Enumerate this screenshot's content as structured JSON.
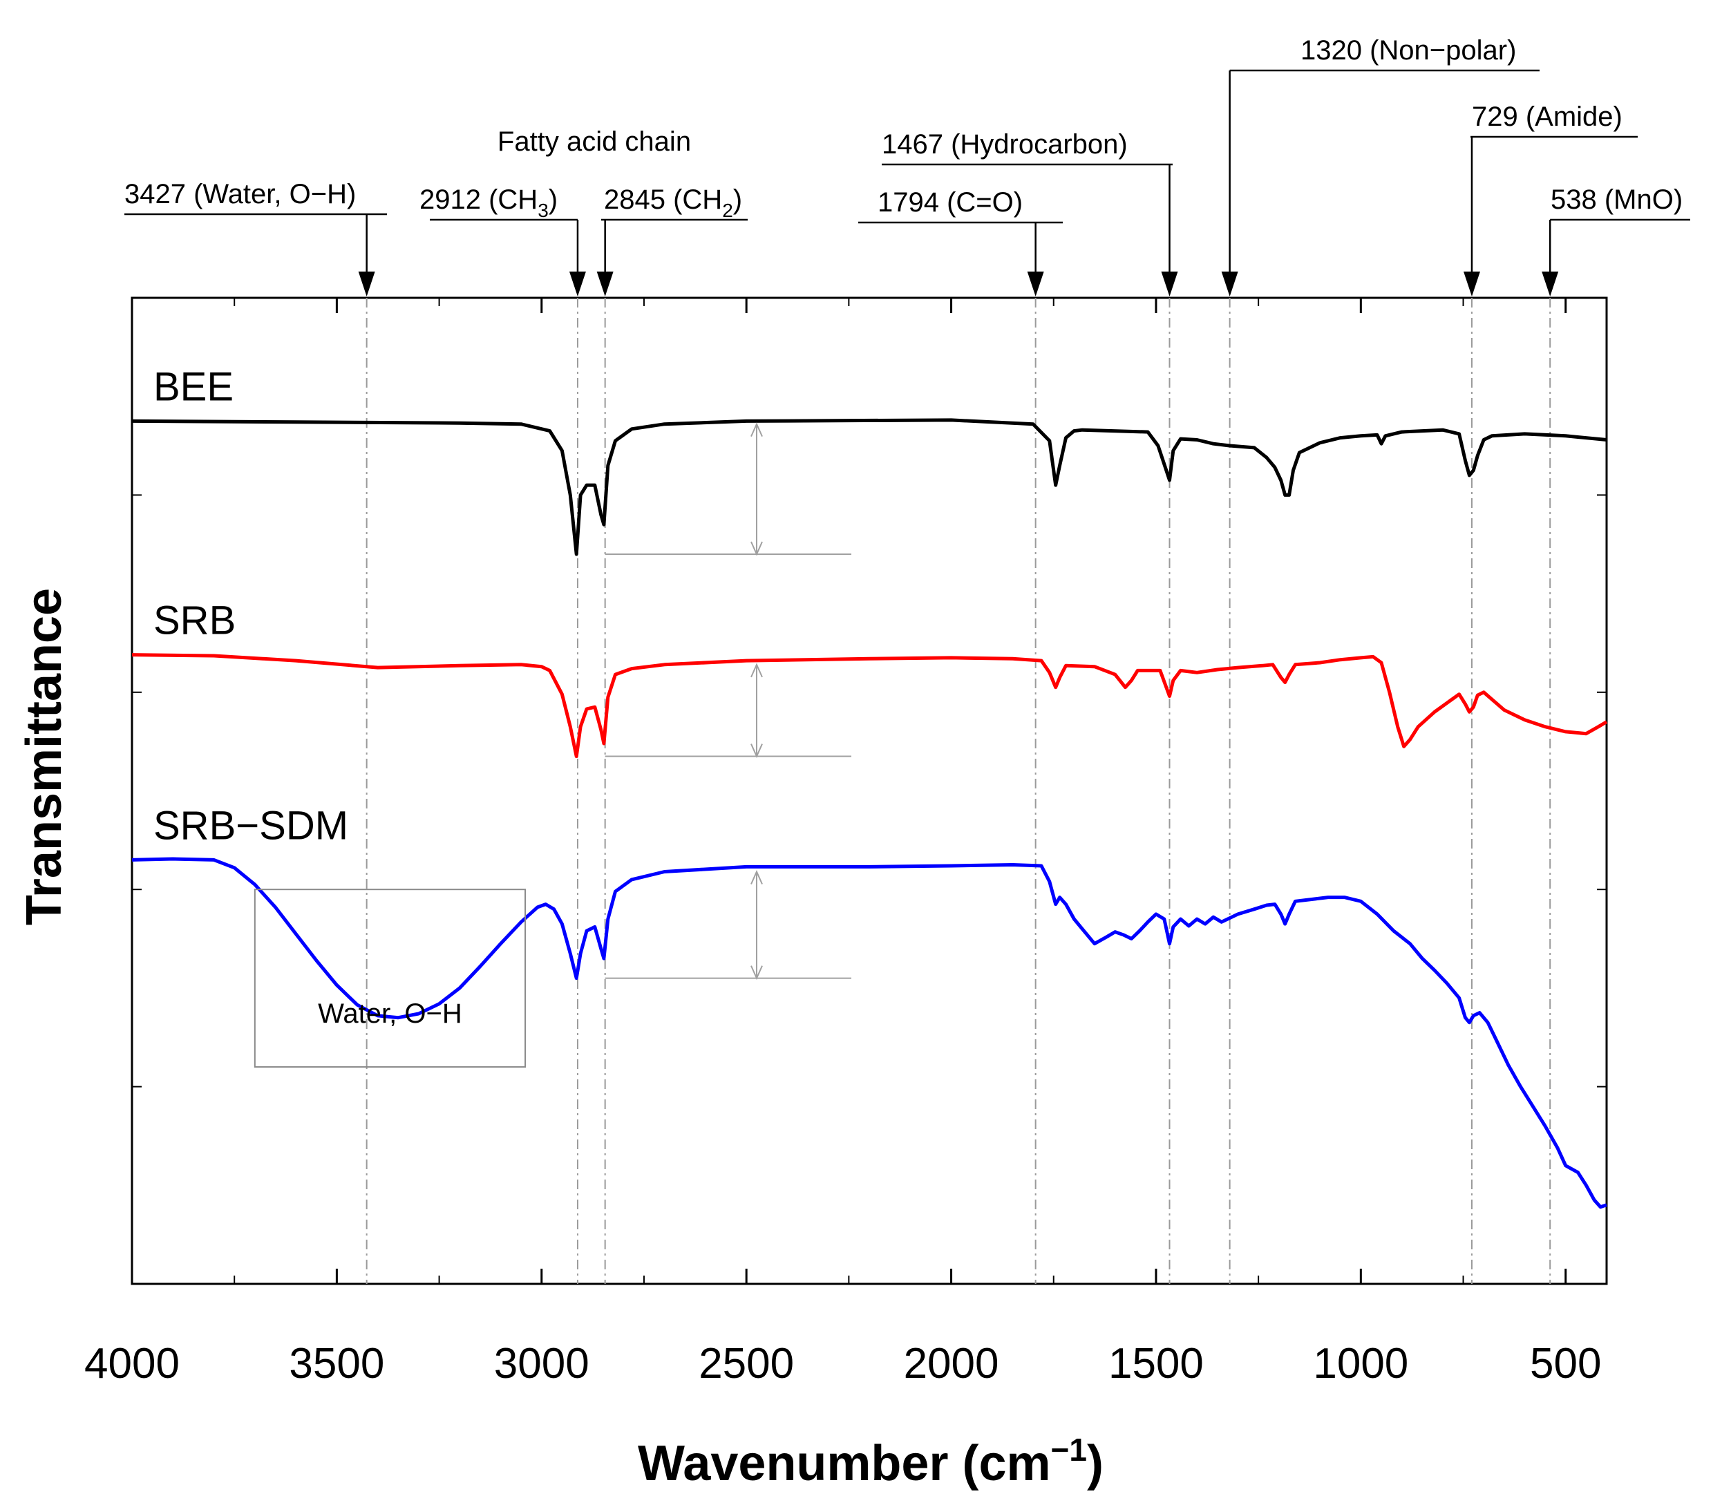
{
  "chart_data": {
    "type": "line",
    "title": "",
    "xlabel": "Wavenumber (cm",
    "xlabel_sup": "−1",
    "xlabel_close": ")",
    "ylabel": "Transmittance",
    "xlim": [
      4000,
      400
    ],
    "ylim": [
      0,
      1
    ],
    "xticks": [
      4000,
      3500,
      3000,
      2500,
      2000,
      1500,
      1000,
      500
    ],
    "tick_labels": [
      "4000",
      "3500",
      "3000",
      "2500",
      "2000",
      "1500",
      "1000",
      "500"
    ],
    "grid": false,
    "series": [
      {
        "name": "BEE",
        "color": "#000000",
        "points": [
          [
            4000,
            0.875
          ],
          [
            3600,
            0.874
          ],
          [
            3200,
            0.873
          ],
          [
            3050,
            0.872
          ],
          [
            2980,
            0.865
          ],
          [
            2950,
            0.845
          ],
          [
            2930,
            0.8
          ],
          [
            2915,
            0.74
          ],
          [
            2905,
            0.8
          ],
          [
            2890,
            0.81
          ],
          [
            2870,
            0.81
          ],
          [
            2855,
            0.78
          ],
          [
            2848,
            0.77
          ],
          [
            2838,
            0.83
          ],
          [
            2820,
            0.855
          ],
          [
            2780,
            0.867
          ],
          [
            2700,
            0.872
          ],
          [
            2500,
            0.875
          ],
          [
            2000,
            0.876
          ],
          [
            1800,
            0.872
          ],
          [
            1760,
            0.855
          ],
          [
            1745,
            0.81
          ],
          [
            1735,
            0.83
          ],
          [
            1720,
            0.858
          ],
          [
            1700,
            0.865
          ],
          [
            1680,
            0.866
          ],
          [
            1520,
            0.864
          ],
          [
            1495,
            0.85
          ],
          [
            1475,
            0.825
          ],
          [
            1467,
            0.815
          ],
          [
            1458,
            0.845
          ],
          [
            1440,
            0.857
          ],
          [
            1400,
            0.856
          ],
          [
            1360,
            0.852
          ],
          [
            1320,
            0.85
          ],
          [
            1260,
            0.848
          ],
          [
            1230,
            0.838
          ],
          [
            1210,
            0.828
          ],
          [
            1195,
            0.815
          ],
          [
            1185,
            0.8
          ],
          [
            1175,
            0.8
          ],
          [
            1165,
            0.825
          ],
          [
            1150,
            0.843
          ],
          [
            1100,
            0.853
          ],
          [
            1050,
            0.858
          ],
          [
            1000,
            0.86
          ],
          [
            960,
            0.861
          ],
          [
            950,
            0.852
          ],
          [
            940,
            0.86
          ],
          [
            900,
            0.864
          ],
          [
            800,
            0.866
          ],
          [
            760,
            0.862
          ],
          [
            745,
            0.835
          ],
          [
            735,
            0.82
          ],
          [
            725,
            0.825
          ],
          [
            715,
            0.84
          ],
          [
            700,
            0.856
          ],
          [
            680,
            0.86
          ],
          [
            600,
            0.862
          ],
          [
            500,
            0.86
          ],
          [
            400,
            0.856
          ]
        ]
      },
      {
        "name": "SRB",
        "color": "#ff0000",
        "points": [
          [
            4000,
            0.638
          ],
          [
            3800,
            0.637
          ],
          [
            3600,
            0.632
          ],
          [
            3400,
            0.625
          ],
          [
            3200,
            0.627
          ],
          [
            3050,
            0.628
          ],
          [
            3000,
            0.626
          ],
          [
            2980,
            0.622
          ],
          [
            2950,
            0.598
          ],
          [
            2930,
            0.565
          ],
          [
            2915,
            0.535
          ],
          [
            2905,
            0.565
          ],
          [
            2890,
            0.583
          ],
          [
            2870,
            0.585
          ],
          [
            2855,
            0.562
          ],
          [
            2848,
            0.548
          ],
          [
            2838,
            0.595
          ],
          [
            2820,
            0.618
          ],
          [
            2780,
            0.624
          ],
          [
            2700,
            0.628
          ],
          [
            2500,
            0.632
          ],
          [
            2200,
            0.634
          ],
          [
            2000,
            0.635
          ],
          [
            1850,
            0.634
          ],
          [
            1780,
            0.632
          ],
          [
            1760,
            0.62
          ],
          [
            1745,
            0.605
          ],
          [
            1735,
            0.615
          ],
          [
            1720,
            0.627
          ],
          [
            1650,
            0.626
          ],
          [
            1600,
            0.618
          ],
          [
            1575,
            0.605
          ],
          [
            1560,
            0.612
          ],
          [
            1545,
            0.622
          ],
          [
            1490,
            0.622
          ],
          [
            1475,
            0.605
          ],
          [
            1467,
            0.596
          ],
          [
            1458,
            0.612
          ],
          [
            1440,
            0.622
          ],
          [
            1400,
            0.62
          ],
          [
            1350,
            0.623
          ],
          [
            1300,
            0.625
          ],
          [
            1240,
            0.627
          ],
          [
            1215,
            0.628
          ],
          [
            1195,
            0.615
          ],
          [
            1185,
            0.61
          ],
          [
            1175,
            0.618
          ],
          [
            1160,
            0.628
          ],
          [
            1100,
            0.63
          ],
          [
            1050,
            0.633
          ],
          [
            1000,
            0.635
          ],
          [
            970,
            0.636
          ],
          [
            950,
            0.63
          ],
          [
            930,
            0.6
          ],
          [
            910,
            0.565
          ],
          [
            895,
            0.545
          ],
          [
            880,
            0.552
          ],
          [
            860,
            0.565
          ],
          [
            820,
            0.58
          ],
          [
            780,
            0.592
          ],
          [
            760,
            0.598
          ],
          [
            745,
            0.588
          ],
          [
            735,
            0.58
          ],
          [
            725,
            0.585
          ],
          [
            715,
            0.597
          ],
          [
            700,
            0.6
          ],
          [
            650,
            0.582
          ],
          [
            600,
            0.572
          ],
          [
            550,
            0.565
          ],
          [
            500,
            0.56
          ],
          [
            450,
            0.558
          ],
          [
            420,
            0.565
          ],
          [
            400,
            0.57
          ]
        ]
      },
      {
        "name": "SRB−SDM",
        "color": "#0000ff",
        "points": [
          [
            4000,
            0.43
          ],
          [
            3900,
            0.431
          ],
          [
            3800,
            0.43
          ],
          [
            3750,
            0.422
          ],
          [
            3700,
            0.405
          ],
          [
            3650,
            0.382
          ],
          [
            3600,
            0.355
          ],
          [
            3550,
            0.328
          ],
          [
            3500,
            0.303
          ],
          [
            3450,
            0.283
          ],
          [
            3400,
            0.272
          ],
          [
            3350,
            0.27
          ],
          [
            3300,
            0.274
          ],
          [
            3250,
            0.284
          ],
          [
            3200,
            0.3
          ],
          [
            3150,
            0.322
          ],
          [
            3100,
            0.345
          ],
          [
            3050,
            0.367
          ],
          [
            3010,
            0.382
          ],
          [
            2990,
            0.385
          ],
          [
            2970,
            0.38
          ],
          [
            2950,
            0.365
          ],
          [
            2930,
            0.335
          ],
          [
            2915,
            0.31
          ],
          [
            2905,
            0.335
          ],
          [
            2890,
            0.358
          ],
          [
            2870,
            0.362
          ],
          [
            2855,
            0.34
          ],
          [
            2848,
            0.33
          ],
          [
            2838,
            0.37
          ],
          [
            2820,
            0.398
          ],
          [
            2780,
            0.41
          ],
          [
            2700,
            0.418
          ],
          [
            2500,
            0.423
          ],
          [
            2200,
            0.423
          ],
          [
            2000,
            0.424
          ],
          [
            1850,
            0.425
          ],
          [
            1780,
            0.424
          ],
          [
            1760,
            0.408
          ],
          [
            1745,
            0.385
          ],
          [
            1735,
            0.392
          ],
          [
            1720,
            0.385
          ],
          [
            1700,
            0.37
          ],
          [
            1680,
            0.36
          ],
          [
            1650,
            0.345
          ],
          [
            1620,
            0.352
          ],
          [
            1600,
            0.357
          ],
          [
            1580,
            0.354
          ],
          [
            1560,
            0.35
          ],
          [
            1540,
            0.358
          ],
          [
            1520,
            0.367
          ],
          [
            1500,
            0.375
          ],
          [
            1480,
            0.37
          ],
          [
            1467,
            0.345
          ],
          [
            1458,
            0.362
          ],
          [
            1440,
            0.37
          ],
          [
            1420,
            0.363
          ],
          [
            1400,
            0.37
          ],
          [
            1380,
            0.365
          ],
          [
            1360,
            0.372
          ],
          [
            1340,
            0.367
          ],
          [
            1300,
            0.375
          ],
          [
            1260,
            0.38
          ],
          [
            1230,
            0.384
          ],
          [
            1210,
            0.385
          ],
          [
            1195,
            0.375
          ],
          [
            1185,
            0.365
          ],
          [
            1175,
            0.375
          ],
          [
            1160,
            0.388
          ],
          [
            1120,
            0.39
          ],
          [
            1080,
            0.392
          ],
          [
            1040,
            0.392
          ],
          [
            1000,
            0.388
          ],
          [
            960,
            0.375
          ],
          [
            920,
            0.358
          ],
          [
            880,
            0.345
          ],
          [
            850,
            0.33
          ],
          [
            820,
            0.318
          ],
          [
            790,
            0.305
          ],
          [
            760,
            0.29
          ],
          [
            745,
            0.27
          ],
          [
            735,
            0.265
          ],
          [
            725,
            0.272
          ],
          [
            710,
            0.275
          ],
          [
            690,
            0.265
          ],
          [
            670,
            0.248
          ],
          [
            640,
            0.222
          ],
          [
            610,
            0.2
          ],
          [
            580,
            0.18
          ],
          [
            550,
            0.16
          ],
          [
            520,
            0.138
          ],
          [
            500,
            0.12
          ],
          [
            470,
            0.113
          ],
          [
            450,
            0.1
          ],
          [
            430,
            0.085
          ],
          [
            415,
            0.078
          ],
          [
            400,
            0.08
          ]
        ]
      }
    ],
    "annotations": [
      {
        "wavenumber": 3427,
        "text": "3427 (Water, O−H)"
      },
      {
        "wavenumber": 2912,
        "text": "2912 (CH",
        "sub": "3",
        "close": ")"
      },
      {
        "wavenumber": 2845,
        "text": "2845 (CH",
        "sub": "2",
        "close": ")"
      },
      {
        "wavenumber": 1794,
        "text": "1794 (C=O)"
      },
      {
        "wavenumber": 1467,
        "text": "1467 (Hydrocarbon)"
      },
      {
        "wavenumber": 1320,
        "text": "1320 (Non−polar)"
      },
      {
        "wavenumber": 729,
        "text": "729 (Amide)"
      },
      {
        "wavenumber": 538,
        "text": "538 (MnO)"
      }
    ],
    "group_label": "Fatty acid chain",
    "box_label": "Water, O−H"
  }
}
